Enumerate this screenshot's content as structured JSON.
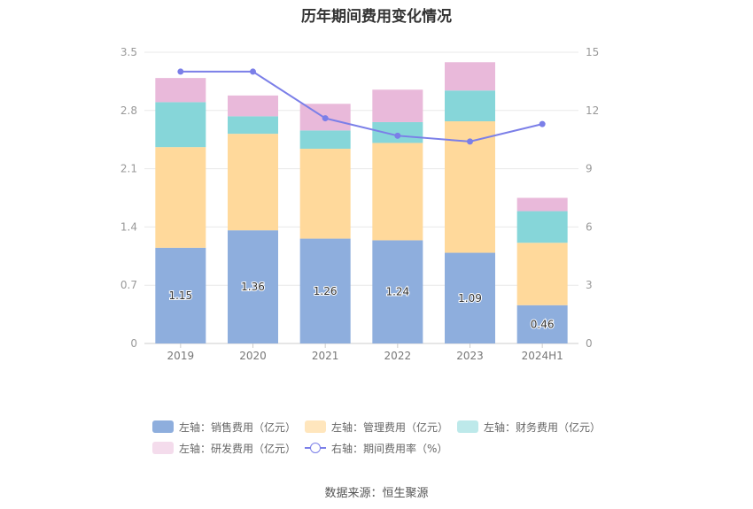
{
  "title": "历年期间费用变化情况",
  "source": "数据来源：恒生聚源",
  "chart_data": {
    "type": "bar",
    "stacked": true,
    "categories": [
      "2019",
      "2020",
      "2021",
      "2022",
      "2023",
      "2024H1"
    ],
    "left_axis": {
      "ylim": [
        0,
        3.5
      ],
      "ticks": [
        "0",
        "0.7",
        "1.4",
        "2.1",
        "2.8",
        "3.5"
      ]
    },
    "right_axis": {
      "ylim": [
        0,
        15
      ],
      "ticks": [
        "0",
        "3",
        "6",
        "9",
        "12",
        "15"
      ]
    },
    "grid": true,
    "legend_position": "bottom",
    "series": [
      {
        "name": "左轴：销售费用（亿元）",
        "axis": "left",
        "type": "bar",
        "color": "#8eaedd",
        "values": [
          1.15,
          1.36,
          1.26,
          1.24,
          1.09,
          0.46
        ],
        "labels": [
          "1.15",
          "1.36",
          "1.26",
          "1.24",
          "1.09",
          "0.46"
        ]
      },
      {
        "name": "左轴：管理费用（亿元）",
        "axis": "left",
        "type": "bar",
        "color": "#ffd99b",
        "values": [
          1.21,
          1.16,
          1.08,
          1.17,
          1.58,
          0.75
        ]
      },
      {
        "name": "左轴：财务费用（亿元）",
        "axis": "left",
        "type": "bar",
        "color": "#86d6d9",
        "values": [
          0.54,
          0.21,
          0.22,
          0.25,
          0.37,
          0.38
        ]
      },
      {
        "name": "左轴：研发费用（亿元）",
        "axis": "left",
        "type": "bar",
        "color": "#e9b9da",
        "values": [
          0.29,
          0.25,
          0.32,
          0.39,
          0.34,
          0.16
        ]
      },
      {
        "name": "右轴：期间费用率（%）",
        "axis": "right",
        "type": "line",
        "color": "#7b7fe8",
        "values": [
          14.0,
          14.0,
          11.6,
          10.7,
          10.4,
          11.3
        ]
      }
    ]
  }
}
